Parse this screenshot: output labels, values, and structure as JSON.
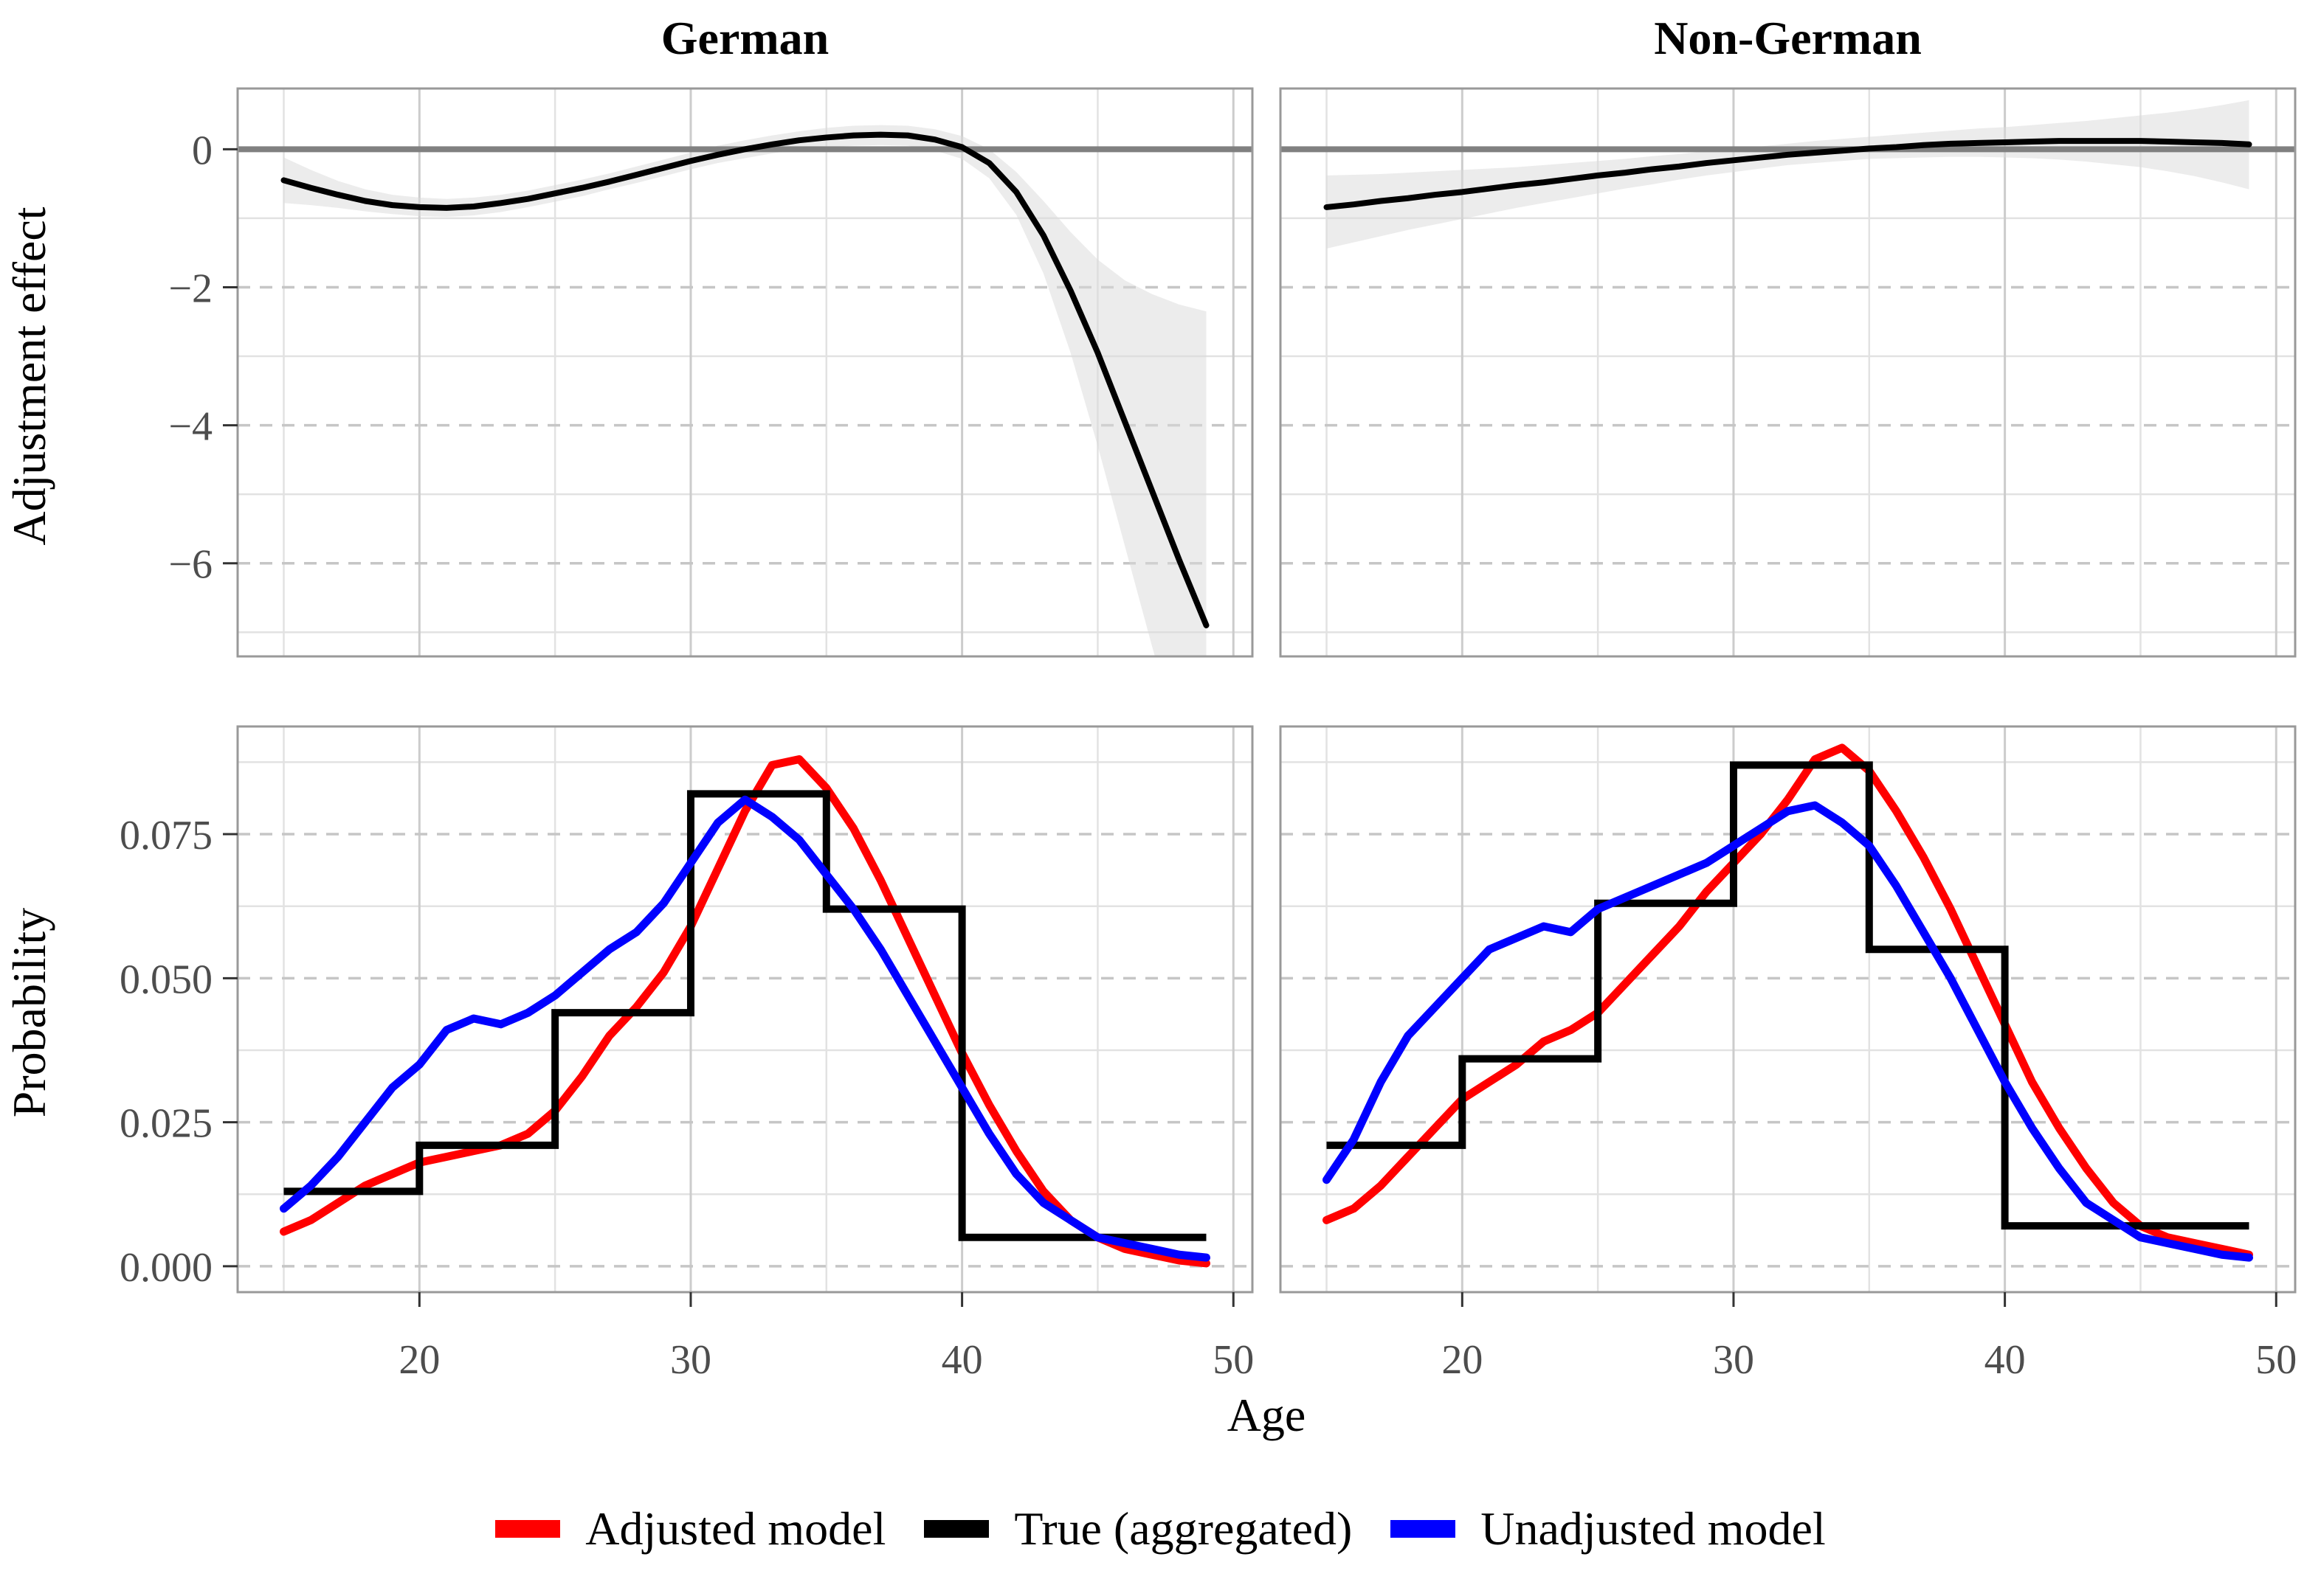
{
  "figure": {
    "facet_titles": [
      "German",
      "Non-German"
    ],
    "x_axis": {
      "label": "Age",
      "tick_labels": [
        "20",
        "30",
        "40",
        "50"
      ]
    },
    "top_row": {
      "y_label": "Adjustment effect",
      "y_tick_labels": [
        "0",
        "−2",
        "−4",
        "−6"
      ]
    },
    "bottom_row": {
      "y_label": "Probability",
      "y_tick_labels": [
        "0.000",
        "0.025",
        "0.050",
        "0.075"
      ]
    },
    "legend": {
      "items": [
        {
          "label": "Adjusted model",
          "color": "#FF0000"
        },
        {
          "label": "True (aggregated)",
          "color": "#000000"
        },
        {
          "label": "Unadjusted model",
          "color": "#0000FF"
        }
      ]
    },
    "colors": {
      "reference_line": "#808080",
      "smooth_line": "#000000",
      "ribbon": "#d9d9d9",
      "grid_major": "#c6c6c6",
      "grid_minor": "#e2e2e2",
      "panel_border": "#999999",
      "tick_mark": "#333333",
      "tick_text": "#4d4d4d"
    }
  },
  "chart_data": [
    {
      "type": "line",
      "facet": "German",
      "position": "top-left",
      "ylabel": "Adjustment effect",
      "xlim": [
        13.3,
        50.7
      ],
      "ylim": [
        -7.35,
        0.88
      ],
      "xticks": [
        20,
        30,
        40,
        50
      ],
      "xminor": [
        15,
        25,
        35,
        45
      ],
      "yticks": [
        0,
        -2,
        -4,
        -6
      ],
      "yminor": [
        -1,
        -3,
        -5,
        -7
      ],
      "hline": 0,
      "x": [
        15,
        16,
        17,
        18,
        19,
        20,
        21,
        22,
        23,
        24,
        25,
        26,
        27,
        28,
        29,
        30,
        31,
        32,
        33,
        34,
        35,
        36,
        37,
        38,
        39,
        40,
        41,
        42,
        43,
        44,
        45,
        46,
        47,
        48,
        49
      ],
      "y": [
        -0.45,
        -0.56,
        -0.66,
        -0.75,
        -0.81,
        -0.84,
        -0.85,
        -0.83,
        -0.78,
        -0.72,
        -0.64,
        -0.56,
        -0.47,
        -0.37,
        -0.27,
        -0.17,
        -0.08,
        0.0,
        0.07,
        0.13,
        0.17,
        0.2,
        0.21,
        0.2,
        0.14,
        0.03,
        -0.2,
        -0.62,
        -1.25,
        -2.05,
        -2.95,
        -3.95,
        -4.95,
        -5.95,
        -6.9
      ],
      "ribbon_upper": [
        -0.12,
        -0.3,
        -0.46,
        -0.58,
        -0.66,
        -0.7,
        -0.72,
        -0.7,
        -0.66,
        -0.6,
        -0.52,
        -0.44,
        -0.35,
        -0.25,
        -0.15,
        -0.05,
        0.05,
        0.13,
        0.2,
        0.26,
        0.31,
        0.34,
        0.35,
        0.34,
        0.29,
        0.19,
        0.0,
        -0.33,
        -0.75,
        -1.2,
        -1.6,
        -1.9,
        -2.1,
        -2.25,
        -2.35
      ],
      "ribbon_lower": [
        -0.78,
        -0.81,
        -0.85,
        -0.9,
        -0.94,
        -0.97,
        -0.98,
        -0.96,
        -0.91,
        -0.84,
        -0.76,
        -0.68,
        -0.58,
        -0.49,
        -0.39,
        -0.29,
        -0.2,
        -0.13,
        -0.06,
        0.0,
        0.03,
        0.05,
        0.06,
        0.05,
        -0.02,
        -0.14,
        -0.42,
        -0.95,
        -1.8,
        -2.95,
        -4.3,
        -5.75,
        -7.2,
        -8.6,
        -10.0
      ]
    },
    {
      "type": "line",
      "facet": "Non-German",
      "position": "top-right",
      "ylabel": "Adjustment effect",
      "xlim": [
        13.3,
        50.7
      ],
      "ylim": [
        -7.35,
        0.88
      ],
      "xticks": [
        20,
        30,
        40,
        50
      ],
      "xminor": [
        15,
        25,
        35,
        45
      ],
      "yticks": [
        0,
        -2,
        -4,
        -6
      ],
      "yminor": [
        -1,
        -3,
        -5,
        -7
      ],
      "hline": 0,
      "x": [
        15,
        16,
        17,
        18,
        19,
        20,
        21,
        22,
        23,
        24,
        25,
        26,
        27,
        28,
        29,
        30,
        31,
        32,
        33,
        34,
        35,
        36,
        37,
        38,
        39,
        40,
        41,
        42,
        43,
        44,
        45,
        46,
        47,
        48,
        49
      ],
      "y": [
        -0.84,
        -0.8,
        -0.75,
        -0.71,
        -0.66,
        -0.62,
        -0.57,
        -0.52,
        -0.48,
        -0.43,
        -0.38,
        -0.34,
        -0.29,
        -0.25,
        -0.2,
        -0.16,
        -0.12,
        -0.08,
        -0.05,
        -0.02,
        0.01,
        0.03,
        0.06,
        0.08,
        0.09,
        0.1,
        0.11,
        0.12,
        0.12,
        0.12,
        0.12,
        0.11,
        0.1,
        0.09,
        0.07
      ],
      "ribbon_upper": [
        -0.38,
        -0.37,
        -0.36,
        -0.34,
        -0.32,
        -0.3,
        -0.28,
        -0.26,
        -0.23,
        -0.2,
        -0.17,
        -0.14,
        -0.1,
        -0.07,
        -0.03,
        0.0,
        0.04,
        0.08,
        0.12,
        0.15,
        0.18,
        0.21,
        0.24,
        0.27,
        0.3,
        0.32,
        0.35,
        0.38,
        0.41,
        0.45,
        0.49,
        0.53,
        0.58,
        0.64,
        0.71
      ],
      "ribbon_lower": [
        -1.44,
        -1.35,
        -1.26,
        -1.17,
        -1.09,
        -1.01,
        -0.93,
        -0.85,
        -0.78,
        -0.71,
        -0.64,
        -0.57,
        -0.51,
        -0.44,
        -0.38,
        -0.33,
        -0.28,
        -0.23,
        -0.2,
        -0.17,
        -0.14,
        -0.13,
        -0.12,
        -0.11,
        -0.11,
        -0.12,
        -0.13,
        -0.15,
        -0.18,
        -0.22,
        -0.26,
        -0.32,
        -0.39,
        -0.48,
        -0.58
      ]
    },
    {
      "type": "line",
      "facet": "German",
      "position": "bottom-left",
      "ylabel": "Probability",
      "xlabel": "Age",
      "xlim": [
        13.3,
        50.7
      ],
      "ylim": [
        -0.0045,
        0.0937
      ],
      "xticks": [
        20,
        30,
        40,
        50
      ],
      "xminor": [
        15,
        25,
        35,
        45
      ],
      "yticks": [
        0,
        0.025,
        0.05,
        0.075
      ],
      "yminor": [
        0.0125,
        0.0375,
        0.0625,
        0.0875
      ],
      "series": [
        {
          "name": "Adjusted model",
          "color": "#FF0000",
          "x": [
            15,
            16,
            17,
            18,
            19,
            20,
            21,
            22,
            23,
            24,
            25,
            26,
            27,
            28,
            29,
            30,
            31,
            32,
            33,
            34,
            35,
            36,
            37,
            38,
            39,
            40,
            41,
            42,
            43,
            44,
            45,
            46,
            47,
            48,
            49
          ],
          "y": [
            0.006,
            0.008,
            0.011,
            0.014,
            0.016,
            0.018,
            0.019,
            0.02,
            0.021,
            0.023,
            0.027,
            0.033,
            0.04,
            0.045,
            0.051,
            0.059,
            0.069,
            0.079,
            0.087,
            0.088,
            0.083,
            0.076,
            0.067,
            0.057,
            0.047,
            0.037,
            0.028,
            0.02,
            0.013,
            0.008,
            0.005,
            0.003,
            0.002,
            0.001,
            0.0005
          ]
        },
        {
          "name": "True (aggregated)",
          "color": "#000000",
          "step_edges": [
            15,
            20,
            25,
            30,
            35,
            40,
            49
          ],
          "step_heights": [
            0.013,
            0.021,
            0.044,
            0.082,
            0.062,
            0.005
          ]
        },
        {
          "name": "Unadjusted model",
          "color": "#0000FF",
          "x": [
            15,
            16,
            17,
            18,
            19,
            20,
            21,
            22,
            23,
            24,
            25,
            26,
            27,
            28,
            29,
            30,
            31,
            32,
            33,
            34,
            35,
            36,
            37,
            38,
            39,
            40,
            41,
            42,
            43,
            44,
            45,
            46,
            47,
            48,
            49
          ],
          "y": [
            0.01,
            0.014,
            0.019,
            0.025,
            0.031,
            0.035,
            0.041,
            0.043,
            0.042,
            0.044,
            0.047,
            0.051,
            0.055,
            0.058,
            0.063,
            0.07,
            0.077,
            0.081,
            0.078,
            0.074,
            0.068,
            0.062,
            0.055,
            0.047,
            0.039,
            0.031,
            0.023,
            0.016,
            0.011,
            0.008,
            0.005,
            0.004,
            0.003,
            0.002,
            0.0015
          ]
        }
      ]
    },
    {
      "type": "line",
      "facet": "Non-German",
      "position": "bottom-right",
      "ylabel": "Probability",
      "xlabel": "Age",
      "xlim": [
        13.3,
        50.7
      ],
      "ylim": [
        -0.0045,
        0.0937
      ],
      "xticks": [
        20,
        30,
        40,
        50
      ],
      "xminor": [
        15,
        25,
        35,
        45
      ],
      "yticks": [
        0,
        0.025,
        0.05,
        0.075
      ],
      "yminor": [
        0.0125,
        0.0375,
        0.0625,
        0.0875
      ],
      "series": [
        {
          "name": "Adjusted model",
          "color": "#FF0000",
          "x": [
            15,
            16,
            17,
            18,
            19,
            20,
            21,
            22,
            23,
            24,
            25,
            26,
            27,
            28,
            29,
            30,
            31,
            32,
            33,
            34,
            35,
            36,
            37,
            38,
            39,
            40,
            41,
            42,
            43,
            44,
            45,
            46,
            47,
            48,
            49
          ],
          "y": [
            0.008,
            0.01,
            0.014,
            0.019,
            0.024,
            0.029,
            0.032,
            0.035,
            0.039,
            0.041,
            0.044,
            0.049,
            0.054,
            0.059,
            0.065,
            0.07,
            0.075,
            0.081,
            0.088,
            0.09,
            0.086,
            0.079,
            0.071,
            0.062,
            0.052,
            0.042,
            0.032,
            0.024,
            0.017,
            0.011,
            0.007,
            0.005,
            0.004,
            0.003,
            0.002
          ]
        },
        {
          "name": "True (aggregated)",
          "color": "#000000",
          "step_edges": [
            15,
            20,
            25,
            30,
            35,
            40,
            49
          ],
          "step_heights": [
            0.021,
            0.036,
            0.063,
            0.087,
            0.055,
            0.007
          ]
        },
        {
          "name": "Unadjusted model",
          "color": "#0000FF",
          "x": [
            15,
            16,
            17,
            18,
            19,
            20,
            21,
            22,
            23,
            24,
            25,
            26,
            27,
            28,
            29,
            30,
            31,
            32,
            33,
            34,
            35,
            36,
            37,
            38,
            39,
            40,
            41,
            42,
            43,
            44,
            45,
            46,
            47,
            48,
            49
          ],
          "y": [
            0.015,
            0.022,
            0.032,
            0.04,
            0.045,
            0.05,
            0.055,
            0.057,
            0.059,
            0.058,
            0.062,
            0.064,
            0.066,
            0.068,
            0.07,
            0.073,
            0.076,
            0.079,
            0.08,
            0.077,
            0.073,
            0.066,
            0.058,
            0.05,
            0.041,
            0.032,
            0.024,
            0.017,
            0.011,
            0.008,
            0.005,
            0.004,
            0.003,
            0.002,
            0.0015
          ]
        }
      ]
    }
  ]
}
